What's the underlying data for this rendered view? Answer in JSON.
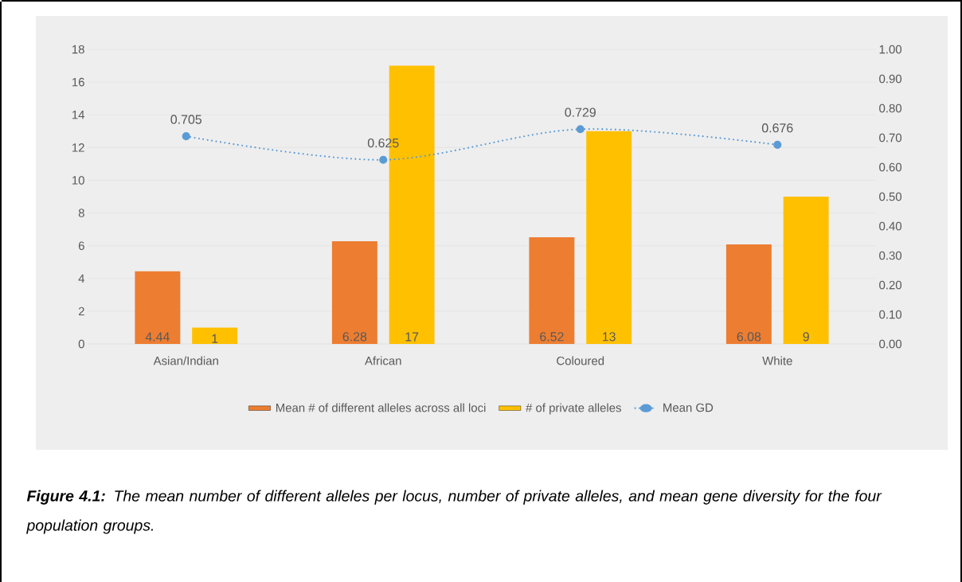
{
  "chart_data": {
    "type": "bar",
    "categories": [
      "Asian/Indian",
      "African",
      "Coloured",
      "White"
    ],
    "series": [
      {
        "name": "Mean # of different alleles across all loci",
        "color": "#ed7d31",
        "values": [
          4.44,
          6.28,
          6.52,
          6.08
        ]
      },
      {
        "name": "# of private alleles",
        "color": "#ffc000",
        "values": [
          1,
          17,
          13,
          9
        ]
      },
      {
        "name": "Mean GD",
        "type": "line",
        "axis": "y2",
        "color": "#5b9bd5",
        "values": [
          0.705,
          0.625,
          0.729,
          0.676
        ],
        "marker": "circle",
        "line_style": "dotted"
      }
    ],
    "ylim": [
      0,
      18
    ],
    "yticks": [
      0,
      2,
      4,
      6,
      8,
      10,
      12,
      14,
      16,
      18
    ],
    "y2lim": [
      0,
      1
    ],
    "y2ticks": [
      {
        "value": 0,
        "label": "0.00"
      },
      {
        "value": 0.1,
        "label": "0.10"
      },
      {
        "value": 0.2,
        "label": "0.20"
      },
      {
        "value": 0.3,
        "label": "0.30"
      },
      {
        "value": 0.4,
        "label": "0.40"
      },
      {
        "value": 0.5,
        "label": "0.50"
      },
      {
        "value": 0.6,
        "label": "0.60"
      },
      {
        "value": 0.7,
        "label": "0.70"
      },
      {
        "value": 0.8,
        "label": "0.80"
      },
      {
        "value": 0.9,
        "label": "0.90"
      },
      {
        "value": 1,
        "label": "1.00"
      }
    ],
    "grid": "y",
    "legend": "bottom",
    "data_labels": true,
    "annotations": [
      "**Figure 4.1:** The mean number of different alleles per locus, number of private alleles, and mean gene diversity for the four population groups."
    ]
  }
}
